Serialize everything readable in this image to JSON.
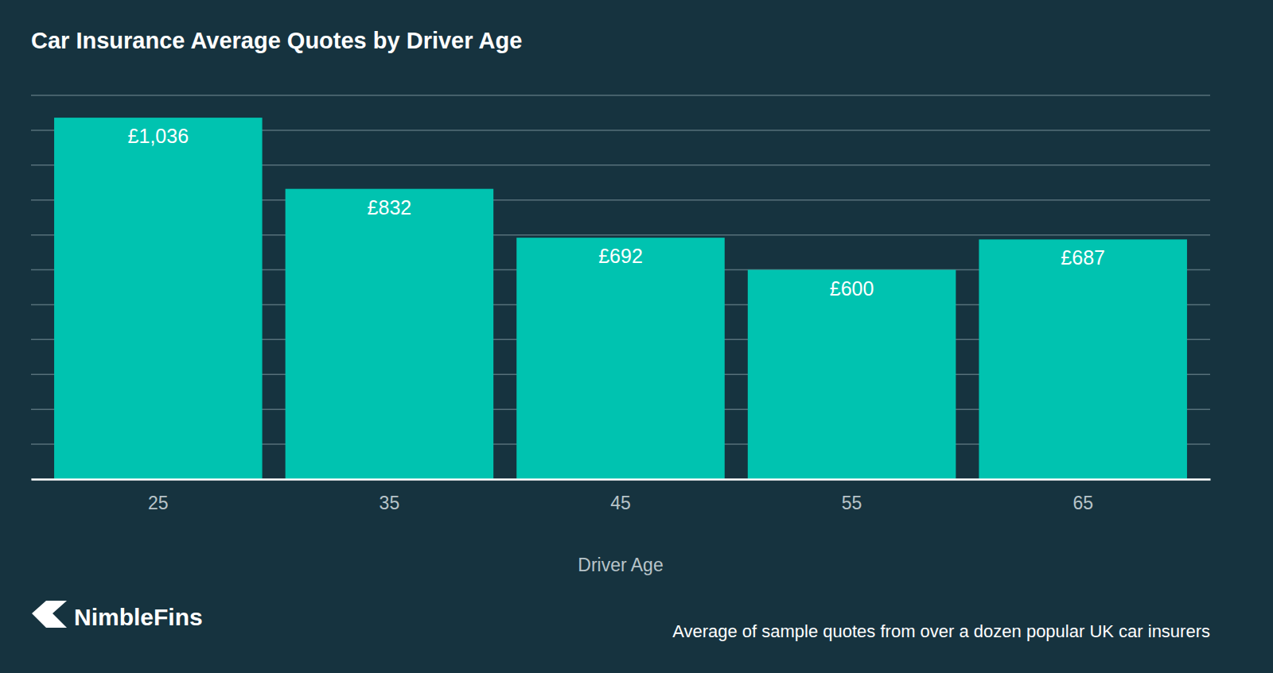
{
  "chart_data": {
    "type": "bar",
    "title": "Car Insurance Average Quotes by Driver Age",
    "x_label": "Driver Age",
    "categories": [
      "25",
      "35",
      "45",
      "55",
      "65"
    ],
    "values": [
      1036,
      832,
      692,
      600,
      687
    ],
    "value_labels": [
      "£1,036",
      "£832",
      "£692",
      "£600",
      "£687"
    ],
    "color": "#00c3b0",
    "ylim": [
      0,
      1100
    ],
    "yticks": [
      0,
      100,
      200,
      300,
      400,
      500,
      600,
      700,
      800,
      900,
      1000,
      1100
    ],
    "grid": true,
    "data_labels": true,
    "tick_labels": "x",
    "annotations": [
      "NimbleFins",
      "Average of sample quotes from over a dozen popular UK car insurers"
    ]
  }
}
